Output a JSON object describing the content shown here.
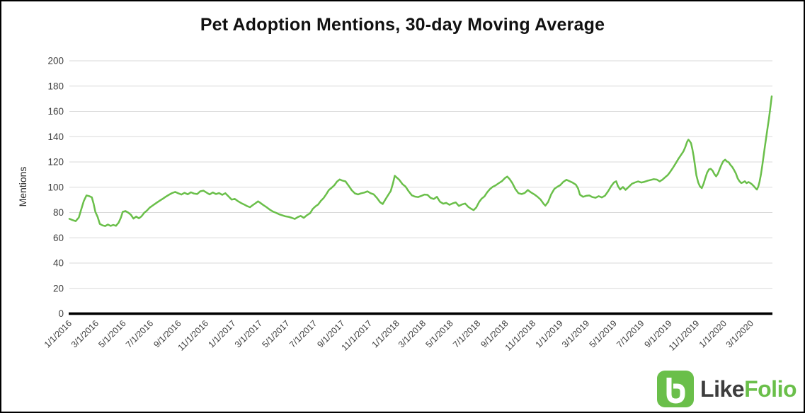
{
  "header": {
    "title": "Pet Adoption Mentions, 30-day Moving Average"
  },
  "colors": {
    "line": "#6abf4a",
    "grid": "#d9d9d9",
    "axis": "#000000",
    "tick_text": "#404040",
    "title_text": "#111111",
    "brand_dark": "#3d3d3d",
    "brand_green": "#6abf4a"
  },
  "logo": {
    "icon": "likefolio-monogram",
    "brand_first": "Like",
    "brand_second": "Folio"
  },
  "chart_data": {
    "type": "line",
    "title": "Pet Adoption Mentions, 30-day Moving Average",
    "xlabel": "",
    "ylabel": "Mentions",
    "ylim": [
      0,
      200
    ],
    "y_ticks": [
      0,
      20,
      40,
      60,
      80,
      100,
      120,
      140,
      160,
      180,
      200
    ],
    "x_tick_labels": [
      "1/1/2016",
      "3/1/2016",
      "5/1/2016",
      "7/1/2016",
      "9/1/2016",
      "11/1/2016",
      "1/1/2017",
      "3/1/2017",
      "5/1/2017",
      "7/1/2017",
      "9/1/2017",
      "11/1/2017",
      "1/1/2018",
      "3/1/2018",
      "5/1/2018",
      "7/1/2018",
      "9/1/2018",
      "11/1/2018",
      "1/1/2019",
      "3/1/2019",
      "5/1/2019",
      "7/1/2019",
      "9/1/2019",
      "11/1/2019",
      "1/1/2020",
      "3/1/2020"
    ],
    "x_range": [
      "1/1/2016",
      "4/16/2020"
    ],
    "grid": "horizontal",
    "legend": "none",
    "series": [
      {
        "name": "Pet Adoption Mentions (30-day moving average)",
        "color": "#6abf4a",
        "points": [
          [
            "1/1/2016",
            75
          ],
          [
            "1/8/2016",
            74
          ],
          [
            "1/15/2016",
            73.2
          ],
          [
            "1/22/2016",
            76
          ],
          [
            "1/27/2016",
            82
          ],
          [
            "2/2/2016",
            89
          ],
          [
            "2/8/2016",
            93.5
          ],
          [
            "2/14/2016",
            93
          ],
          [
            "2/20/2016",
            92
          ],
          [
            "2/24/2016",
            87
          ],
          [
            "2/28/2016",
            80.5
          ],
          [
            "3/4/2016",
            76.5
          ],
          [
            "3/9/2016",
            71
          ],
          [
            "3/15/2016",
            69.8
          ],
          [
            "3/21/2016",
            69.3
          ],
          [
            "3/27/2016",
            70.5
          ],
          [
            "4/2/2016",
            69.4
          ],
          [
            "4/8/2016",
            70.2
          ],
          [
            "4/14/2016",
            69.5
          ],
          [
            "4/20/2016",
            72
          ],
          [
            "4/25/2016",
            76
          ],
          [
            "4/29/2016",
            80.5
          ],
          [
            "5/5/2016",
            81.2
          ],
          [
            "5/11/2016",
            80
          ],
          [
            "5/17/2016",
            78.3
          ],
          [
            "5/23/2016",
            75.2
          ],
          [
            "5/29/2016",
            76.8
          ],
          [
            "6/4/2016",
            75.4
          ],
          [
            "6/10/2016",
            77
          ],
          [
            "6/16/2016",
            79.8
          ],
          [
            "6/22/2016",
            81.5
          ],
          [
            "6/28/2016",
            83.8
          ],
          [
            "7/4/2016",
            85.3
          ],
          [
            "7/10/2016",
            86.8
          ],
          [
            "7/16/2016",
            88.3
          ],
          [
            "7/22/2016",
            89.7
          ],
          [
            "7/28/2016",
            91
          ],
          [
            "8/3/2016",
            92.5
          ],
          [
            "8/10/2016",
            94
          ],
          [
            "8/17/2016",
            95.4
          ],
          [
            "8/24/2016",
            96.3
          ],
          [
            "8/31/2016",
            95.2
          ],
          [
            "9/7/2016",
            94.2
          ],
          [
            "9/14/2016",
            95.6
          ],
          [
            "9/21/2016",
            94.4
          ],
          [
            "9/28/2016",
            96
          ],
          [
            "10/5/2016",
            95
          ],
          [
            "10/12/2016",
            94.6
          ],
          [
            "10/19/2016",
            96.8
          ],
          [
            "10/26/2016",
            97.3
          ],
          [
            "11/2/2016",
            95.8
          ],
          [
            "11/9/2016",
            94.3
          ],
          [
            "11/16/2016",
            95.9
          ],
          [
            "11/23/2016",
            94.6
          ],
          [
            "11/30/2016",
            95.4
          ],
          [
            "12/7/2016",
            94
          ],
          [
            "12/14/2016",
            95.3
          ],
          [
            "12/21/2016",
            92.8
          ],
          [
            "12/28/2016",
            90.2
          ],
          [
            "1/4/2017",
            90.8
          ],
          [
            "1/11/2017",
            89
          ],
          [
            "1/18/2017",
            87.5
          ],
          [
            "1/25/2017",
            86.3
          ],
          [
            "2/1/2017",
            85
          ],
          [
            "2/7/2017",
            84.2
          ],
          [
            "2/13/2017",
            85.8
          ],
          [
            "2/19/2017",
            87.3
          ],
          [
            "2/25/2017",
            88.9
          ],
          [
            "3/3/2017",
            87.4
          ],
          [
            "3/9/2017",
            85.8
          ],
          [
            "3/16/2017",
            84.2
          ],
          [
            "3/23/2017",
            82.3
          ],
          [
            "3/30/2017",
            80.8
          ],
          [
            "4/6/2017",
            79.8
          ],
          [
            "4/13/2017",
            78.6
          ],
          [
            "4/20/2017",
            77.8
          ],
          [
            "4/27/2017",
            77
          ],
          [
            "5/4/2017",
            76.6
          ],
          [
            "5/11/2017",
            75.8
          ],
          [
            "5/18/2017",
            74.9
          ],
          [
            "5/25/2017",
            76.5
          ],
          [
            "5/31/2017",
            77.3
          ],
          [
            "6/7/2017",
            75.8
          ],
          [
            "6/14/2017",
            77.9
          ],
          [
            "6/21/2017",
            79.5
          ],
          [
            "6/27/2017",
            82.8
          ],
          [
            "7/3/2017",
            84.8
          ],
          [
            "7/9/2017",
            86.3
          ],
          [
            "7/15/2017",
            89.2
          ],
          [
            "7/21/2017",
            91.3
          ],
          [
            "7/27/2017",
            94.4
          ],
          [
            "8/2/2017",
            97.8
          ],
          [
            "8/8/2017",
            99.5
          ],
          [
            "8/14/2017",
            101.5
          ],
          [
            "8/20/2017",
            104.4
          ],
          [
            "8/26/2017",
            106.1
          ],
          [
            "9/1/2017",
            105.3
          ],
          [
            "9/8/2017",
            104.6
          ],
          [
            "9/15/2017",
            101.2
          ],
          [
            "9/22/2017",
            97.6
          ],
          [
            "9/29/2017",
            95.1
          ],
          [
            "10/6/2017",
            94.3
          ],
          [
            "10/13/2017",
            95.2
          ],
          [
            "10/20/2017",
            95.8
          ],
          [
            "10/27/2017",
            96.7
          ],
          [
            "11/3/2017",
            95.3
          ],
          [
            "11/10/2017",
            94.4
          ],
          [
            "11/17/2017",
            91.6
          ],
          [
            "11/24/2017",
            88.2
          ],
          [
            "11/30/2017",
            86.7
          ],
          [
            "12/6/2017",
            90.3
          ],
          [
            "12/12/2017",
            93.7
          ],
          [
            "12/18/2017",
            97
          ],
          [
            "12/23/2017",
            103.2
          ],
          [
            "12/27/2017",
            109.1
          ],
          [
            "12/31/2017",
            107.8
          ],
          [
            "1/6/2018",
            105.9
          ],
          [
            "1/13/2018",
            102.5
          ],
          [
            "1/20/2018",
            100.5
          ],
          [
            "1/27/2018",
            96.8
          ],
          [
            "2/3/2018",
            93.6
          ],
          [
            "2/10/2018",
            92.6
          ],
          [
            "2/17/2018",
            92.2
          ],
          [
            "2/24/2018",
            93.1
          ],
          [
            "3/3/2018",
            94.2
          ],
          [
            "3/10/2018",
            94
          ],
          [
            "3/17/2018",
            91.6
          ],
          [
            "3/24/2018",
            90.7
          ],
          [
            "3/31/2018",
            92.4
          ],
          [
            "4/7/2018",
            88.5
          ],
          [
            "4/14/2018",
            87
          ],
          [
            "4/21/2018",
            87.6
          ],
          [
            "4/28/2018",
            86.1
          ],
          [
            "5/5/2018",
            87.2
          ],
          [
            "5/12/2018",
            88
          ],
          [
            "5/19/2018",
            85.2
          ],
          [
            "5/26/2018",
            86.4
          ],
          [
            "6/2/2018",
            87.1
          ],
          [
            "6/9/2018",
            84.5
          ],
          [
            "6/15/2018",
            83
          ],
          [
            "6/21/2018",
            81.9
          ],
          [
            "6/27/2018",
            84.1
          ],
          [
            "7/3/2018",
            88.2
          ],
          [
            "7/9/2018",
            91
          ],
          [
            "7/15/2018",
            92.7
          ],
          [
            "7/21/2018",
            95.9
          ],
          [
            "7/27/2018",
            98.4
          ],
          [
            "8/2/2018",
            100.2
          ],
          [
            "8/9/2018",
            101.5
          ],
          [
            "8/16/2018",
            103.2
          ],
          [
            "8/23/2018",
            104.8
          ],
          [
            "8/30/2018",
            107.3
          ],
          [
            "9/4/2018",
            108.4
          ],
          [
            "9/9/2018",
            106.5
          ],
          [
            "9/15/2018",
            103.4
          ],
          [
            "9/22/2018",
            98.6
          ],
          [
            "9/29/2018",
            95.3
          ],
          [
            "10/6/2018",
            94.6
          ],
          [
            "10/13/2018",
            95.5
          ],
          [
            "10/20/2018",
            97.8
          ],
          [
            "10/27/2018",
            95.9
          ],
          [
            "11/3/2018",
            94.4
          ],
          [
            "11/10/2018",
            92.6
          ],
          [
            "11/17/2018",
            90.4
          ],
          [
            "11/24/2018",
            86.9
          ],
          [
            "11/28/2018",
            85.4
          ],
          [
            "12/4/2018",
            88.3
          ],
          [
            "12/11/2018",
            94.4
          ],
          [
            "12/18/2018",
            98.7
          ],
          [
            "12/25/2018",
            100.4
          ],
          [
            "12/31/2018",
            101.6
          ],
          [
            "1/7/2019",
            104.2
          ],
          [
            "1/14/2019",
            105.9
          ],
          [
            "1/21/2019",
            104.7
          ],
          [
            "1/28/2019",
            103.6
          ],
          [
            "2/4/2019",
            102
          ],
          [
            "2/9/2019",
            99
          ],
          [
            "2/13/2019",
            94.1
          ],
          [
            "2/20/2019",
            92.4
          ],
          [
            "2/27/2019",
            93.2
          ],
          [
            "3/6/2019",
            93.5
          ],
          [
            "3/13/2019",
            92.2
          ],
          [
            "3/20/2019",
            91.7
          ],
          [
            "3/27/2019",
            92.9
          ],
          [
            "4/3/2019",
            91.9
          ],
          [
            "4/10/2019",
            93.3
          ],
          [
            "4/17/2019",
            96.8
          ],
          [
            "4/24/2019",
            101
          ],
          [
            "4/30/2019",
            103.8
          ],
          [
            "5/5/2019",
            104.7
          ],
          [
            "5/9/2019",
            100.8
          ],
          [
            "5/14/2019",
            98.2
          ],
          [
            "5/20/2019",
            100.2
          ],
          [
            "5/26/2019",
            97.9
          ],
          [
            "6/2/2019",
            100.3
          ],
          [
            "6/9/2019",
            102.7
          ],
          [
            "6/16/2019",
            103.8
          ],
          [
            "6/23/2019",
            104.6
          ],
          [
            "6/30/2019",
            103.7
          ],
          [
            "7/7/2019",
            104.3
          ],
          [
            "7/14/2019",
            105.1
          ],
          [
            "7/21/2019",
            105.8
          ],
          [
            "7/28/2019",
            106.4
          ],
          [
            "8/4/2019",
            106
          ],
          [
            "8/10/2019",
            104.6
          ],
          [
            "8/16/2019",
            105.9
          ],
          [
            "8/22/2019",
            107.8
          ],
          [
            "8/28/2019",
            109.6
          ],
          [
            "9/3/2019",
            112.4
          ],
          [
            "9/9/2019",
            115.6
          ],
          [
            "9/15/2019",
            119
          ],
          [
            "9/21/2019",
            122.6
          ],
          [
            "9/27/2019",
            125.7
          ],
          [
            "10/2/2019",
            128.4
          ],
          [
            "10/6/2019",
            131.6
          ],
          [
            "10/10/2019",
            135.8
          ],
          [
            "10/13/2019",
            137.6
          ],
          [
            "10/16/2019",
            136.4
          ],
          [
            "10/19/2019",
            134.9
          ],
          [
            "10/22/2019",
            130.2
          ],
          [
            "10/25/2019",
            124.3
          ],
          [
            "10/28/2019",
            116.8
          ],
          [
            "10/31/2019",
            109.4
          ],
          [
            "11/4/2019",
            103.7
          ],
          [
            "11/8/2019",
            100.6
          ],
          [
            "11/12/2019",
            99.3
          ],
          [
            "11/16/2019",
            102.8
          ],
          [
            "11/20/2019",
            107.4
          ],
          [
            "11/24/2019",
            111.6
          ],
          [
            "11/28/2019",
            114.1
          ],
          [
            "12/2/2019",
            114.6
          ],
          [
            "12/6/2019",
            113.2
          ],
          [
            "12/10/2019",
            110.4
          ],
          [
            "12/14/2019",
            108.6
          ],
          [
            "12/18/2019",
            110.7
          ],
          [
            "12/22/2019",
            114.4
          ],
          [
            "12/26/2019",
            117.9
          ],
          [
            "12/30/2019",
            120.6
          ],
          [
            "1/3/2020",
            121.8
          ],
          [
            "1/7/2020",
            120.4
          ],
          [
            "1/11/2020",
            119.8
          ],
          [
            "1/15/2020",
            117.6
          ],
          [
            "1/19/2020",
            116
          ],
          [
            "1/23/2020",
            113.6
          ],
          [
            "1/27/2020",
            110.9
          ],
          [
            "1/31/2020",
            107
          ],
          [
            "2/4/2020",
            104.8
          ],
          [
            "2/8/2020",
            103.3
          ],
          [
            "2/12/2020",
            103.9
          ],
          [
            "2/16/2020",
            104.7
          ],
          [
            "2/20/2020",
            103.2
          ],
          [
            "2/24/2020",
            104.1
          ],
          [
            "2/28/2020",
            103.4
          ],
          [
            "3/3/2020",
            102.3
          ],
          [
            "3/7/2020",
            100.8
          ],
          [
            "3/11/2020",
            99.2
          ],
          [
            "3/14/2020",
            98.2
          ],
          [
            "3/17/2020",
            100.4
          ],
          [
            "3/20/2020",
            104.6
          ],
          [
            "3/23/2020",
            110.2
          ],
          [
            "3/26/2020",
            117.3
          ],
          [
            "3/29/2020",
            125.1
          ],
          [
            "4/1/2020",
            132.8
          ],
          [
            "4/4/2020",
            140.2
          ],
          [
            "4/7/2020",
            147.6
          ],
          [
            "4/10/2020",
            154.8
          ],
          [
            "4/13/2020",
            163.2
          ],
          [
            "4/16/2020",
            171.9
          ]
        ]
      }
    ]
  }
}
